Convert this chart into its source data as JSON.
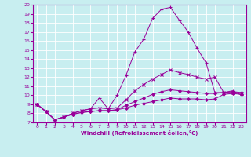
{
  "xlabel": "Windchill (Refroidissement éolien,°C)",
  "ylabel": "",
  "background_color": "#c8eef0",
  "line_color": "#990099",
  "grid_color": "#ffffff",
  "xlim": [
    -0.5,
    23.5
  ],
  "ylim": [
    7,
    20
  ],
  "xticks": [
    0,
    1,
    2,
    3,
    4,
    5,
    6,
    7,
    8,
    9,
    10,
    11,
    12,
    13,
    14,
    15,
    16,
    17,
    18,
    19,
    20,
    21,
    22,
    23
  ],
  "yticks": [
    7,
    8,
    9,
    10,
    11,
    12,
    13,
    14,
    15,
    16,
    17,
    18,
    19,
    20
  ],
  "lines": [
    {
      "x": [
        0,
        1,
        2,
        3,
        4,
        5,
        6,
        7,
        8,
        9,
        10,
        11,
        12,
        13,
        14,
        15,
        16,
        17,
        18,
        19,
        20,
        21,
        22,
        23
      ],
      "y": [
        9.0,
        8.2,
        7.3,
        7.6,
        8.0,
        8.3,
        8.5,
        9.7,
        8.5,
        10.0,
        12.2,
        14.8,
        16.2,
        18.5,
        19.5,
        19.7,
        18.3,
        17.0,
        15.2,
        13.6,
        10.3,
        10.3,
        10.5,
        10.0
      ]
    },
    {
      "x": [
        0,
        1,
        2,
        3,
        4,
        5,
        6,
        7,
        8,
        9,
        10,
        11,
        12,
        13,
        14,
        15,
        16,
        17,
        18,
        19,
        20,
        21,
        22,
        23
      ],
      "y": [
        9.0,
        8.2,
        7.3,
        7.6,
        8.0,
        8.3,
        8.5,
        8.6,
        8.5,
        8.6,
        9.5,
        10.5,
        11.2,
        11.8,
        12.3,
        12.8,
        12.5,
        12.3,
        12.0,
        11.8,
        12.0,
        10.3,
        10.3,
        10.2
      ]
    },
    {
      "x": [
        0,
        1,
        2,
        3,
        4,
        5,
        6,
        7,
        8,
        9,
        10,
        11,
        12,
        13,
        14,
        15,
        16,
        17,
        18,
        19,
        20,
        21,
        22,
        23
      ],
      "y": [
        9.0,
        8.2,
        7.3,
        7.6,
        7.9,
        8.1,
        8.2,
        8.3,
        8.3,
        8.4,
        8.9,
        9.3,
        9.7,
        10.1,
        10.4,
        10.6,
        10.5,
        10.4,
        10.3,
        10.2,
        10.2,
        10.3,
        10.4,
        10.3
      ]
    },
    {
      "x": [
        0,
        1,
        2,
        3,
        4,
        5,
        6,
        7,
        8,
        9,
        10,
        11,
        12,
        13,
        14,
        15,
        16,
        17,
        18,
        19,
        20,
        21,
        22,
        23
      ],
      "y": [
        9.0,
        8.2,
        7.3,
        7.6,
        7.9,
        8.1,
        8.2,
        8.3,
        8.3,
        8.4,
        8.6,
        8.9,
        9.1,
        9.3,
        9.5,
        9.7,
        9.6,
        9.6,
        9.6,
        9.5,
        9.6,
        10.1,
        10.2,
        10.1
      ]
    }
  ]
}
